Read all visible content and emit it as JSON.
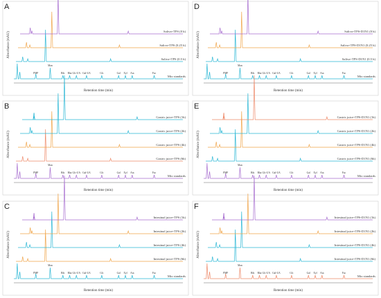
{
  "chart_data": {
    "type": "line",
    "x_label": "Retention time (min)",
    "y_label": "Absorbance (mAU)",
    "peak_labels": [
      "PMP",
      "Man",
      "Rib",
      "Rha",
      "Glc-UA",
      "Gal-UA",
      "Glc",
      "Gal",
      "Xyl",
      "Ara",
      "Fuc"
    ],
    "panels": [
      {
        "label": "A",
        "traces": [
          {
            "name": "Saliva+TPS (0 h)",
            "color": "#a86fd0"
          },
          {
            "name": "Saliva+TPS (0.25 h)",
            "color": "#f0a54a"
          },
          {
            "name": "Saliva+TPS (0.5 h)",
            "color": "#2ab7d5"
          },
          {
            "name": "Mix standards",
            "color": "#2ab7d5"
          }
        ]
      },
      {
        "label": "B",
        "traces": [
          {
            "name": "Gastric juice+TPS (1h)",
            "color": "#2ab7d5"
          },
          {
            "name": "Gastric juice+TPS (2h)",
            "color": "#2ab7d5"
          },
          {
            "name": "Gastric juice+TPS (4h)",
            "color": "#f0a54a"
          },
          {
            "name": "Gastric juice+TPS (6h)",
            "color": "#ee8a6a"
          },
          {
            "name": "Mix standards",
            "color": "#a86fd0"
          }
        ]
      },
      {
        "label": "C",
        "traces": [
          {
            "name": "Intestinal juice+TPS (1h)",
            "color": "#a86fd0"
          },
          {
            "name": "Intestinal juice+TPS (2h)",
            "color": "#f0a54a"
          },
          {
            "name": "Intestinal juice+TPS (4h)",
            "color": "#2ab7d5"
          },
          {
            "name": "Intestinal juice+TPS (6h)",
            "color": "#f0a54a"
          },
          {
            "name": "Mix standards",
            "color": "#2ab7d5"
          }
        ]
      },
      {
        "label": "D",
        "traces": [
          {
            "name": "Saliva+TPS-D1N1 (0 h)",
            "color": "#a86fd0"
          },
          {
            "name": "Saliva+TPS-D1N1 (0.25 h)",
            "color": "#f0a54a"
          },
          {
            "name": "Saliva+TPS-D1N1 (0.5 h)",
            "color": "#2ab7d5"
          },
          {
            "name": "Mix standards",
            "color": "#2ab7d5"
          }
        ]
      },
      {
        "label": "E",
        "traces": [
          {
            "name": "Gastric juice+TPS-D1N1 (1h)",
            "color": "#ee8a6a"
          },
          {
            "name": "Gastric juice+TPS-D1N1 (2h)",
            "color": "#2ab7d5"
          },
          {
            "name": "Gastric juice+TPS-D1N1 (4h)",
            "color": "#f0a54a"
          },
          {
            "name": "Gastric juice+TPS-D1N1 (6h)",
            "color": "#2ab7d5"
          },
          {
            "name": "Mix standards",
            "color": "#a86fd0"
          }
        ]
      },
      {
        "label": "F",
        "traces": [
          {
            "name": "Intestinal juice+TPS-D1N1 (1h)",
            "color": "#a86fd0"
          },
          {
            "name": "Intestinal juice+TPS-D1N1 (2h)",
            "color": "#f0a54a"
          },
          {
            "name": "Intestinal juice+TPS-D1N1 (4h)",
            "color": "#2ab7d5"
          },
          {
            "name": "Intestinal juice+TPS-D1N1 (6h)",
            "color": "#2ab7d5"
          },
          {
            "name": "Mix standards",
            "color": "#ee8a6a"
          }
        ]
      }
    ]
  }
}
